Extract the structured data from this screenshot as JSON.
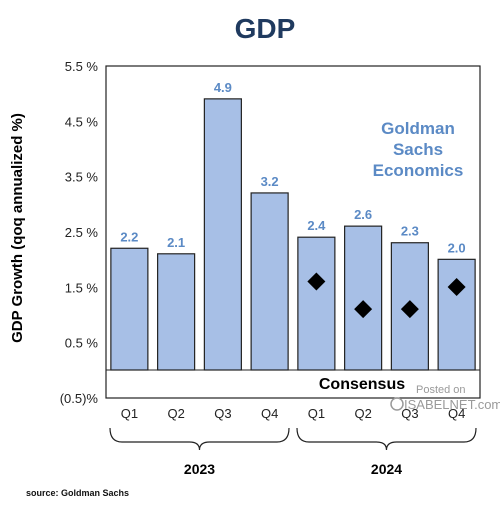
{
  "chart_data": {
    "type": "bar",
    "title": "GDP",
    "ylabel": "GDP Growth (qoq annualized %)",
    "xlabel": "",
    "ylim": [
      -0.5,
      5.5
    ],
    "yticks": [
      -0.5,
      0.5,
      1.5,
      2.5,
      3.5,
      4.5,
      5.5
    ],
    "ytick_labels": [
      "(0.5)%",
      "0.5 %",
      "1.5 %",
      "2.5 %",
      "3.5 %",
      "4.5 %",
      "5.5 %"
    ],
    "categories": [
      "Q1",
      "Q2",
      "Q3",
      "Q4",
      "Q1",
      "Q2",
      "Q3",
      "Q4"
    ],
    "groups": [
      {
        "label": "2023",
        "categories": [
          "Q1",
          "Q2",
          "Q3",
          "Q4"
        ]
      },
      {
        "label": "2024",
        "categories": [
          "Q1",
          "Q2",
          "Q3",
          "Q4"
        ]
      }
    ],
    "series": [
      {
        "name": "Goldman Sachs Economics",
        "values": [
          2.2,
          2.1,
          4.9,
          3.2,
          2.4,
          2.6,
          2.3,
          2.0
        ],
        "data_labels": [
          "2.2",
          "2.1",
          "4.9",
          "3.2",
          "2.4",
          "2.6",
          "2.3",
          "2.0"
        ]
      },
      {
        "name": "Consensus",
        "values": [
          null,
          null,
          null,
          null,
          1.6,
          1.1,
          1.1,
          1.5
        ]
      }
    ],
    "annotations": [
      "Goldman Sachs Economics",
      "Consensus"
    ],
    "grid": false,
    "colors": {
      "bar": "#a7bfe6",
      "bar_edge": "#222222",
      "label": "#5b8ac5",
      "title": "#1f3a5f",
      "marker": "#000000"
    }
  },
  "annotation_gs_line1": "Goldman",
  "annotation_gs_line2": "Sachs",
  "annotation_gs_line3": "Economics",
  "source": "source: Goldman Sachs",
  "watermark_line1": "Posted on",
  "watermark_line2": "ISABELNET.com"
}
